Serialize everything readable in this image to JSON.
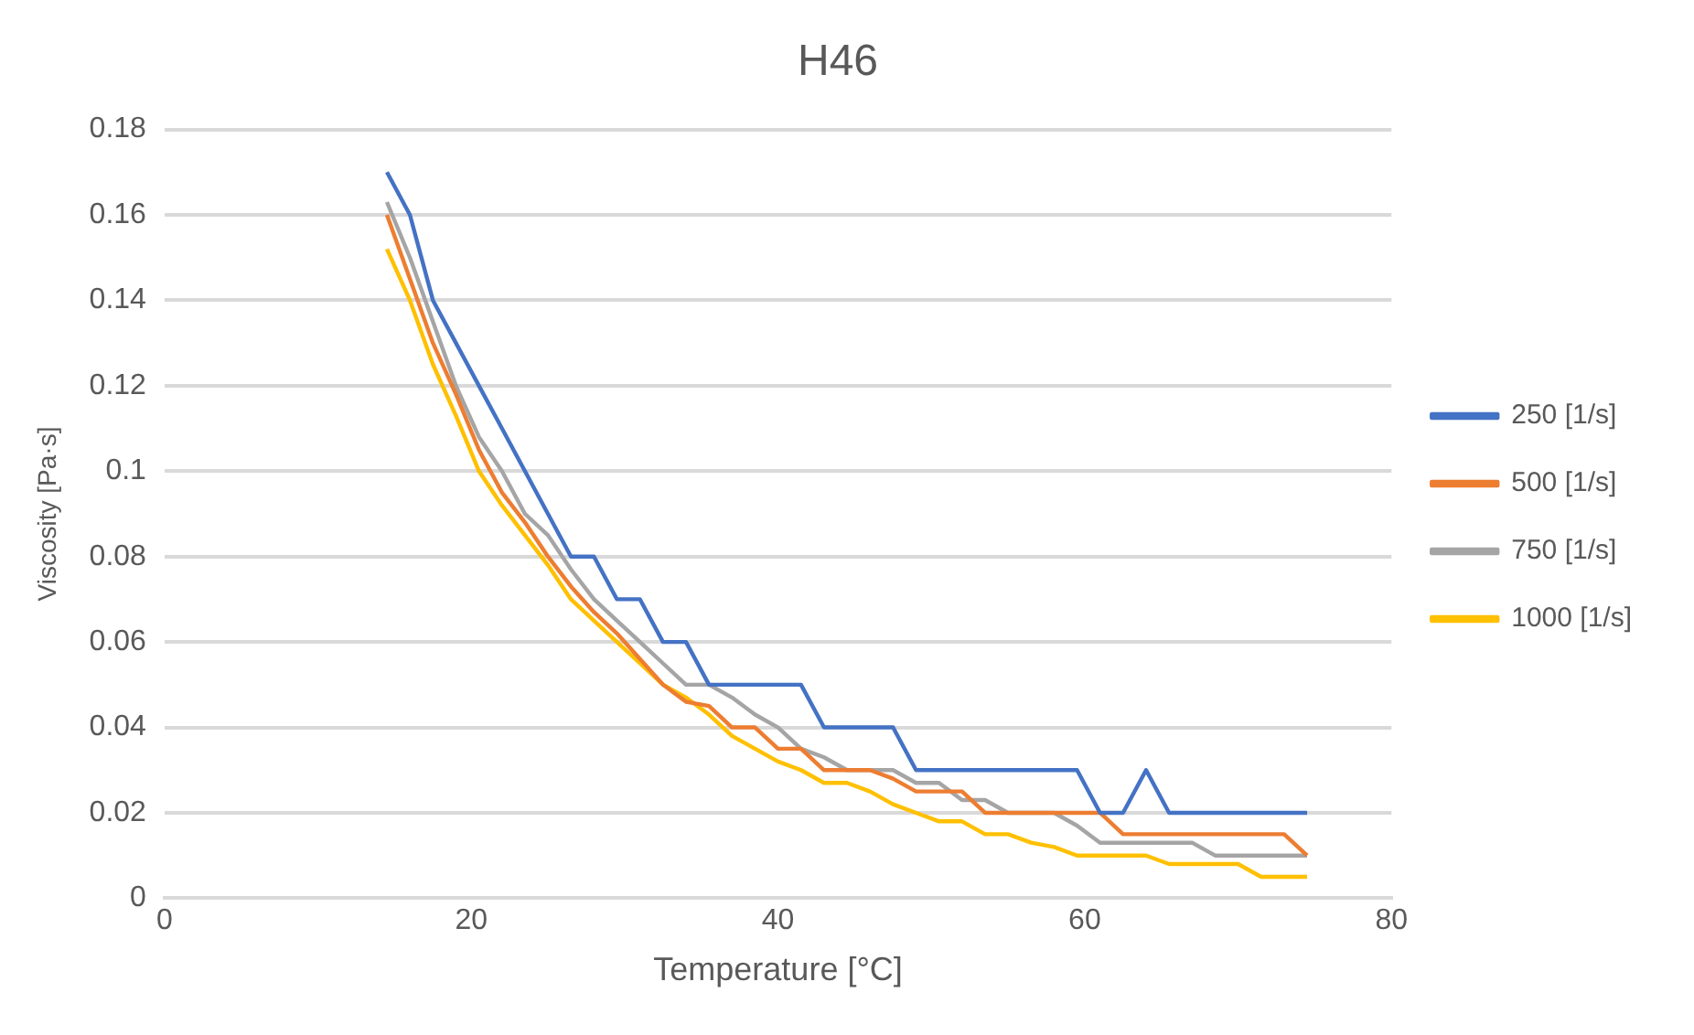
{
  "chart_data": {
    "type": "line",
    "title": "H46",
    "xlabel": "Temperature [°C]",
    "ylabel": "Viscosity [Pa·s]",
    "x": [
      14.5,
      16,
      17.5,
      19,
      20.5,
      22,
      23.5,
      25,
      26.5,
      28,
      29.5,
      31,
      32.5,
      34,
      35.5,
      37,
      38.5,
      40,
      41.5,
      43,
      44.5,
      46,
      47.5,
      49,
      50.5,
      52,
      53.5,
      55,
      56.5,
      58,
      59.5,
      61,
      62.5,
      64,
      65.5,
      67,
      68.5,
      70,
      71.5,
      73,
      74.5
    ],
    "series": [
      {
        "name": "250 [1/s]",
        "color": "#4472c4",
        "values": [
          0.17,
          0.16,
          0.14,
          0.13,
          0.12,
          0.11,
          0.1,
          0.09,
          0.08,
          0.08,
          0.07,
          0.07,
          0.06,
          0.06,
          0.05,
          0.05,
          0.05,
          0.05,
          0.05,
          0.04,
          0.04,
          0.04,
          0.04,
          0.03,
          0.03,
          0.03,
          0.03,
          0.03,
          0.03,
          0.03,
          0.03,
          0.02,
          0.02,
          0.03,
          0.02,
          0.02,
          0.02,
          0.02,
          0.02,
          0.02,
          0.02
        ]
      },
      {
        "name": "500 [1/s]",
        "color": "#ed7d31",
        "values": [
          0.16,
          0.145,
          0.13,
          0.118,
          0.105,
          0.095,
          0.088,
          0.08,
          0.073,
          0.067,
          0.062,
          0.056,
          0.05,
          0.046,
          0.045,
          0.04,
          0.04,
          0.035,
          0.035,
          0.03,
          0.03,
          0.03,
          0.028,
          0.025,
          0.025,
          0.025,
          0.02,
          0.02,
          0.02,
          0.02,
          0.02,
          0.02,
          0.015,
          0.015,
          0.015,
          0.015,
          0.015,
          0.015,
          0.015,
          0.015,
          0.01
        ]
      },
      {
        "name": "750 [1/s]",
        "color": "#a5a5a5",
        "values": [
          0.163,
          0.15,
          0.135,
          0.12,
          0.108,
          0.1,
          0.09,
          0.085,
          0.077,
          0.07,
          0.065,
          0.06,
          0.055,
          0.05,
          0.05,
          0.047,
          0.043,
          0.04,
          0.035,
          0.033,
          0.03,
          0.03,
          0.03,
          0.027,
          0.027,
          0.023,
          0.023,
          0.02,
          0.02,
          0.02,
          0.017,
          0.013,
          0.013,
          0.013,
          0.013,
          0.013,
          0.01,
          0.01,
          0.01,
          0.01,
          0.01
        ]
      },
      {
        "name": "1000 [1/s]",
        "color": "#ffc000",
        "values": [
          0.152,
          0.14,
          0.125,
          0.113,
          0.1,
          0.092,
          0.085,
          0.078,
          0.07,
          0.065,
          0.06,
          0.055,
          0.05,
          0.047,
          0.043,
          0.038,
          0.035,
          0.032,
          0.03,
          0.027,
          0.027,
          0.025,
          0.022,
          0.02,
          0.018,
          0.018,
          0.015,
          0.015,
          0.013,
          0.012,
          0.01,
          0.01,
          0.01,
          0.01,
          0.008,
          0.008,
          0.008,
          0.008,
          0.005,
          0.005,
          0.005
        ]
      }
    ],
    "xlim": [
      0,
      80
    ],
    "xticks": [
      0,
      20,
      40,
      60,
      80
    ],
    "ylim": [
      0,
      0.18
    ],
    "yticks": [
      0,
      0.02,
      0.04,
      0.06,
      0.08,
      0.1,
      0.12,
      0.14,
      0.16,
      0.18
    ],
    "grid": "y",
    "legend": "right",
    "marker": "none",
    "line_style": "solid"
  }
}
